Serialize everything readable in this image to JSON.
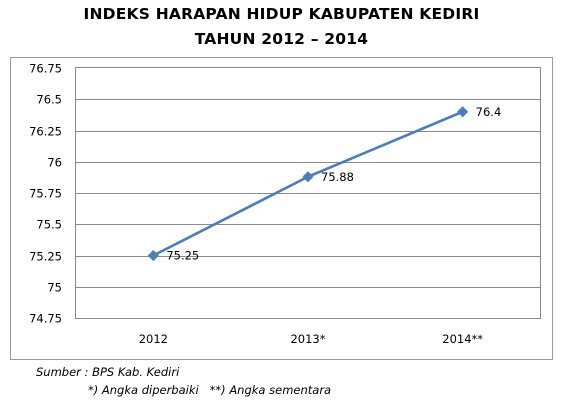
{
  "title_line_1": "INDEKS HARAPAN HIDUP KABUPATEN KEDIRI",
  "title_line_2": "TAHUN 2012 – 2014",
  "source_note": "Sumber : BPS Kab. Kediri",
  "legend_note": "*) Angka diperbaiki   **) Angka sementara",
  "chart_data": {
    "type": "line",
    "title": "INDEKS HARAPAN HIDUP KABUPATEN KEDIRI TAHUN 2012 – 2014",
    "xlabel": "",
    "ylabel": "",
    "categories": [
      "2012",
      "2013*",
      "2014**"
    ],
    "series": [
      {
        "values": [
          75.25,
          75.88,
          76.4
        ],
        "labels": [
          "75.25",
          "75.88",
          "76.4"
        ],
        "color": "#4A7EBB",
        "marker": "diamond"
      }
    ],
    "ylim": [
      74.75,
      76.75
    ],
    "yticks": [
      74.75,
      75,
      75.25,
      75.5,
      75.75,
      76,
      76.25,
      76.5,
      76.75
    ],
    "ytick_labels": [
      "74.75",
      "75",
      "75.25",
      "75.5",
      "75.75",
      "76",
      "76.25",
      "76.5",
      "76.75"
    ],
    "grid": {
      "y": true,
      "x": false,
      "color": "#8a8a8a"
    },
    "legend": "none",
    "data_labels": "right"
  }
}
